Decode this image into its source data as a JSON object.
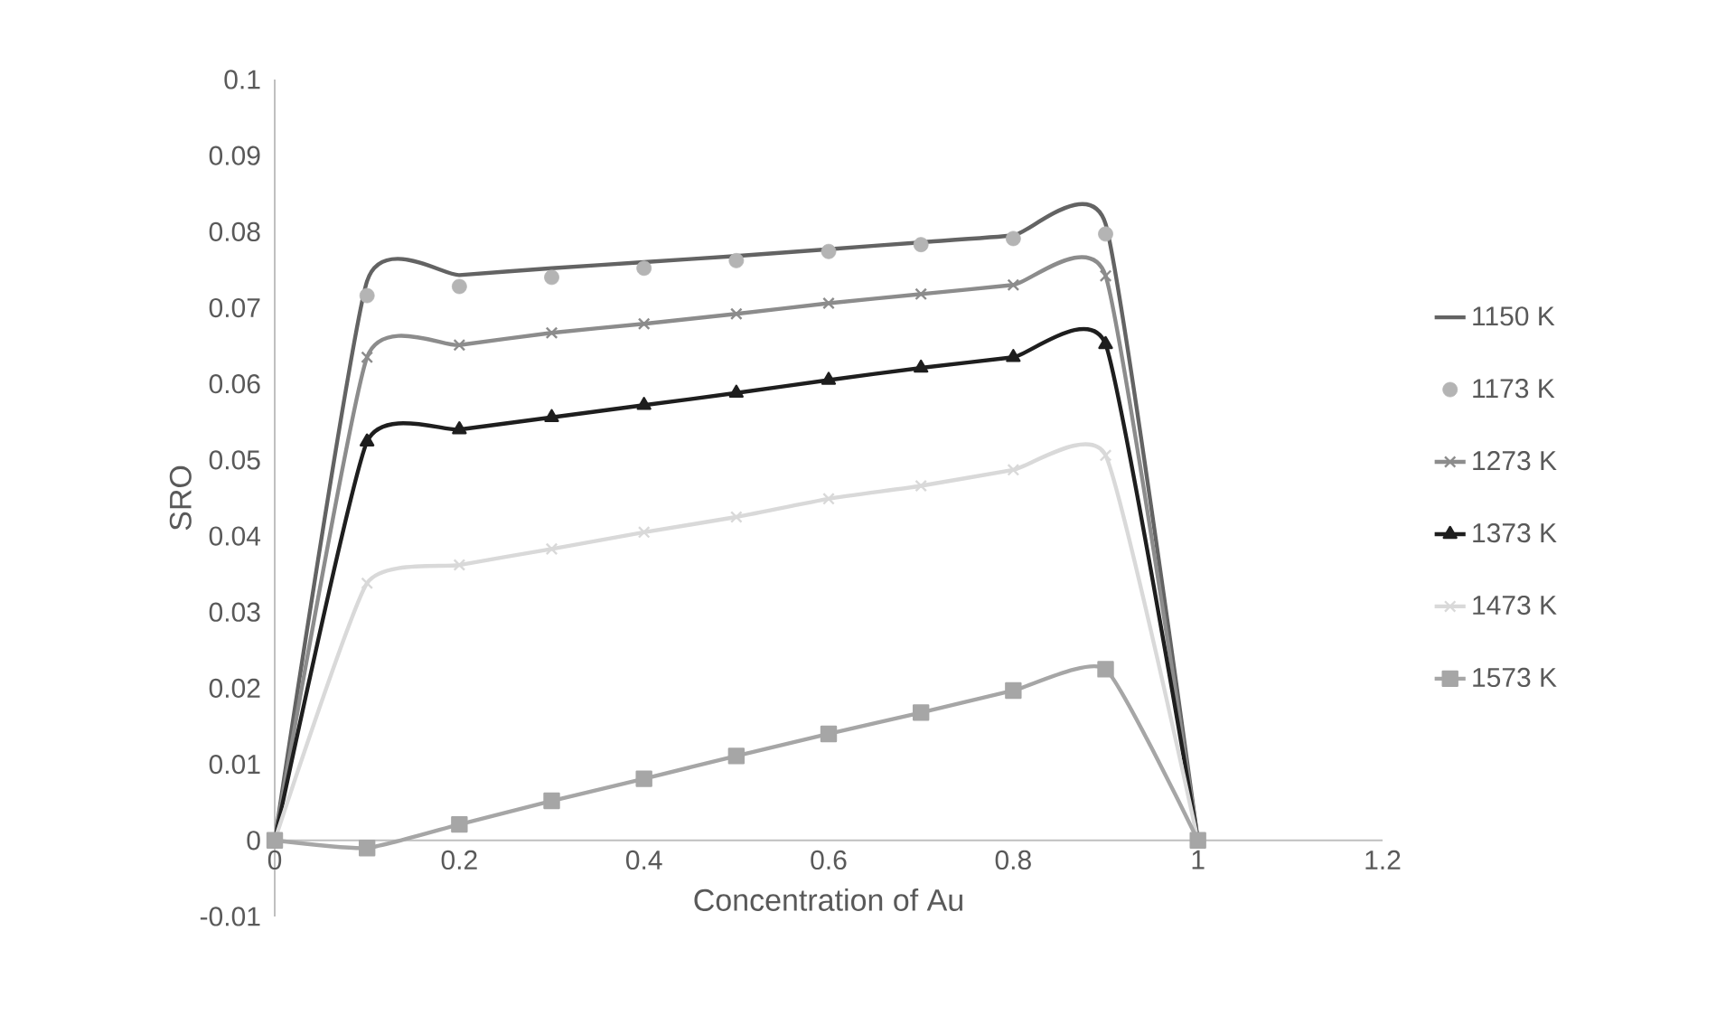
{
  "chart_data": {
    "type": "line",
    "xlabel": "Concentration of Au",
    "ylabel": "SRO",
    "x": [
      0,
      0.1,
      0.2,
      0.3,
      0.4,
      0.5,
      0.6,
      0.7,
      0.8,
      0.9,
      1
    ],
    "series": [
      {
        "name": "1150 K",
        "color": "#636363",
        "marker": "none",
        "values": [
          0,
          0.0735,
          0.0743,
          0.0752,
          0.076,
          0.0768,
          0.0777,
          0.0786,
          0.0795,
          0.081,
          0
        ]
      },
      {
        "name": "1173 K",
        "type": "scatter",
        "color": "#b4b4b4",
        "marker": "circle",
        "values": [
          null,
          0.0716,
          0.0728,
          0.074,
          0.0752,
          0.0762,
          0.0774,
          0.0783,
          0.0791,
          0.0797,
          null
        ]
      },
      {
        "name": "1273 K",
        "color": "#8c8c8c",
        "marker": "cross",
        "values": [
          0,
          0.0635,
          0.0651,
          0.0667,
          0.0679,
          0.0692,
          0.0706,
          0.0718,
          0.073,
          0.0742,
          0
        ]
      },
      {
        "name": "1373 K",
        "color": "#1e1e1e",
        "marker": "triangle",
        "values": [
          0,
          0.0524,
          0.054,
          0.0556,
          0.0572,
          0.0588,
          0.0605,
          0.0621,
          0.0635,
          0.0652,
          0
        ]
      },
      {
        "name": "1473 K",
        "color": "#d9d9d9",
        "marker": "cross",
        "values": [
          0,
          0.0338,
          0.0362,
          0.0383,
          0.0405,
          0.0425,
          0.0449,
          0.0466,
          0.0487,
          0.0506,
          0
        ]
      },
      {
        "name": "1573 K",
        "color": "#a6a6a6",
        "marker": "square",
        "values": [
          0,
          -0.001,
          0.0021,
          0.0052,
          0.0081,
          0.0111,
          0.014,
          0.0168,
          0.0197,
          0.0225,
          0
        ]
      }
    ],
    "xlim": [
      0,
      1.2
    ],
    "xticks": [
      0,
      0.2,
      0.4,
      0.6,
      0.8,
      1,
      1.2
    ],
    "ylim": [
      -0.01,
      0.1
    ],
    "yticks": [
      -0.01,
      0,
      0.01,
      0.02,
      0.03,
      0.04,
      0.05,
      0.06,
      0.07,
      0.08,
      0.09,
      0.1
    ],
    "legend": "right"
  }
}
